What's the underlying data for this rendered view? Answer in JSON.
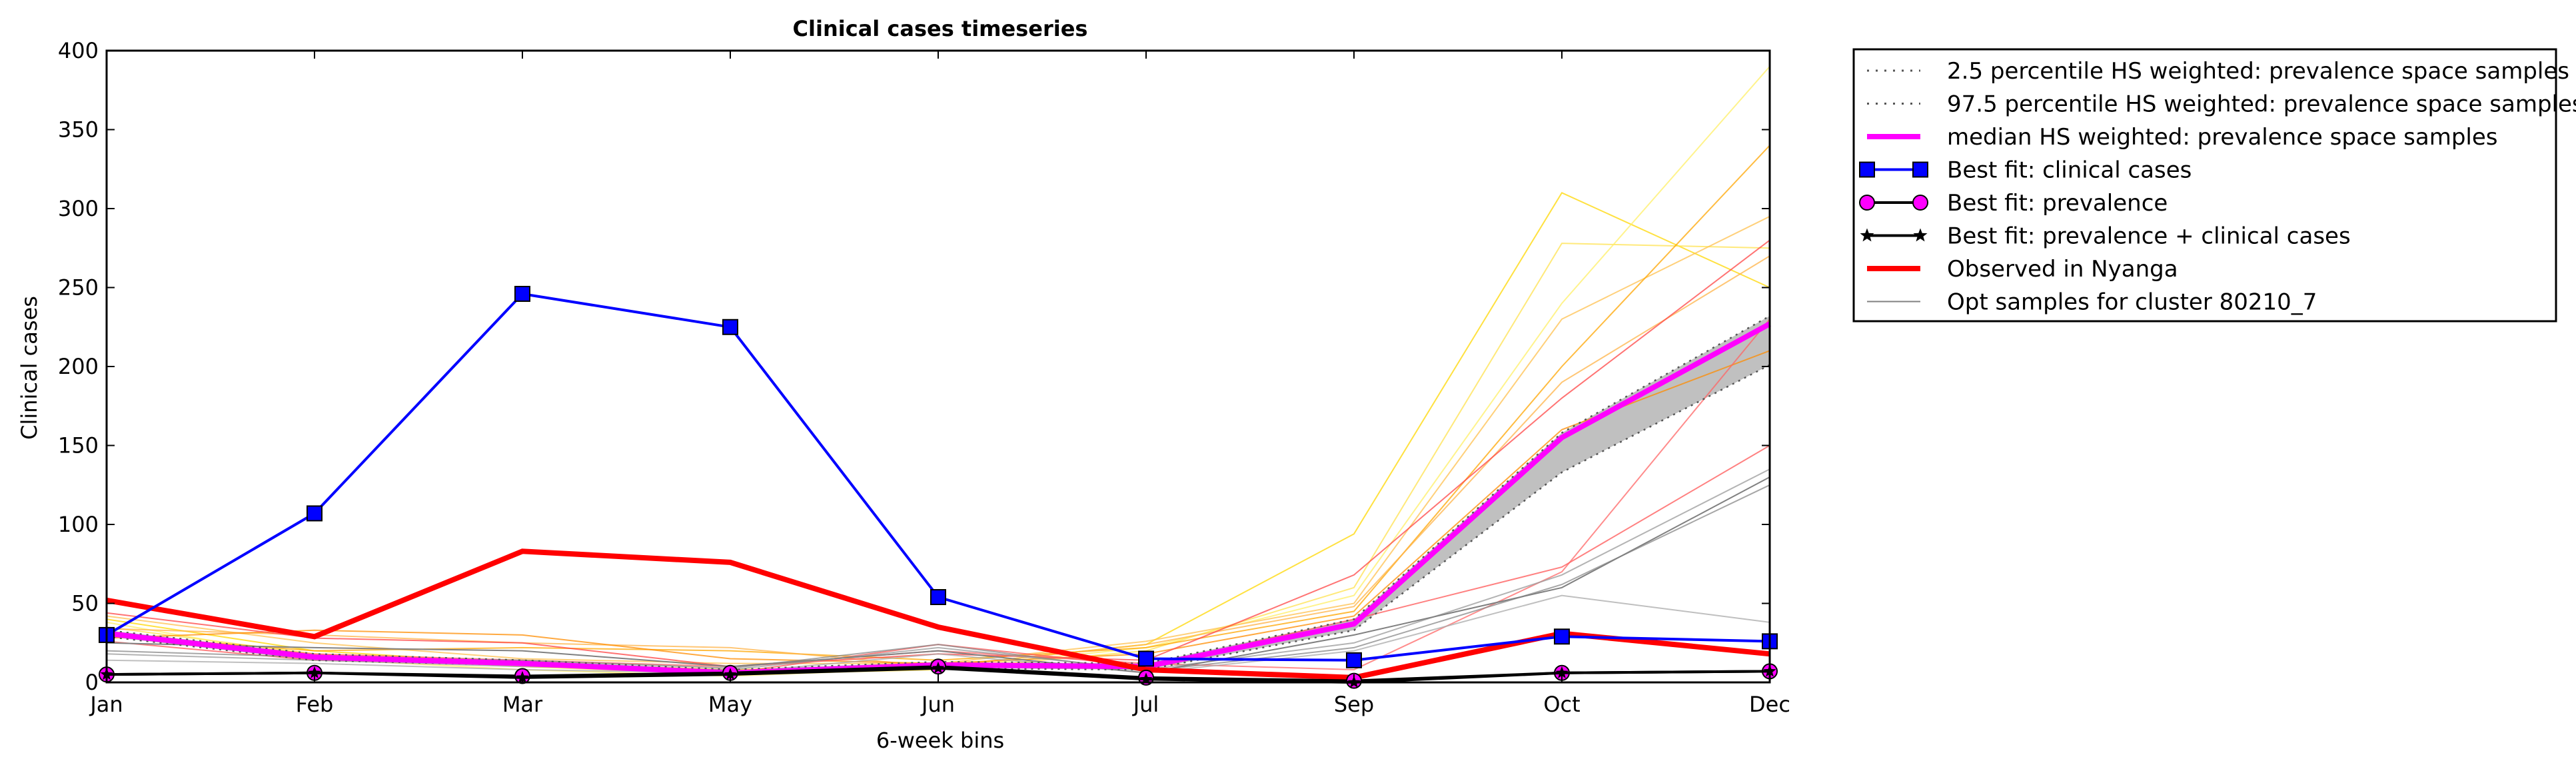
{
  "chart_data": {
    "type": "line",
    "title": "Clinical cases timeseries",
    "xlabel": "6-week bins",
    "ylabel": "Clinical cases",
    "categories": [
      "Jan",
      "Feb",
      "Mar",
      "May",
      "Jun",
      "Jul",
      "Sep",
      "Oct",
      "Dec"
    ],
    "ylim": [
      0,
      400
    ],
    "yticks": [
      0,
      50,
      100,
      150,
      200,
      250,
      300,
      350,
      400
    ],
    "legend_position": "outside-top-right",
    "colors": {
      "percentile": "#555555",
      "band": "#c0c0c0",
      "median": "#ff00ff",
      "best_clinical": "#0000ff",
      "best_prevalence": "#ff00ff",
      "best_combined": "#000000",
      "observed": "#ff0000",
      "opt_samples": "#808080"
    },
    "series": [
      {
        "key": "p2_5",
        "name": "2.5 percentile HS weighted: prevalence space samples",
        "values": [
          29,
          14,
          11,
          5,
          9,
          8,
          33,
          133,
          201
        ]
      },
      {
        "key": "p97_5",
        "name": "97.5 percentile HS weighted: prevalence space samples",
        "values": [
          33,
          18,
          14,
          8,
          13,
          12,
          40,
          158,
          232
        ]
      },
      {
        "key": "median",
        "name": "median HS weighted: prevalence space samples",
        "values": [
          31,
          16,
          12,
          6,
          11,
          10,
          37,
          155,
          227
        ]
      },
      {
        "key": "best_clinical",
        "name": "Best fit: clinical cases",
        "values": [
          30,
          107,
          246,
          225,
          54,
          15,
          14,
          29,
          26
        ]
      },
      {
        "key": "best_prevalence",
        "name": "Best fit: prevalence",
        "values": [
          5,
          6,
          4,
          6,
          10,
          3,
          1,
          6,
          7
        ]
      },
      {
        "key": "best_combined",
        "name": "Best fit: prevalence + clinical cases",
        "values": [
          5,
          6,
          3,
          5,
          9,
          2,
          0,
          6,
          7
        ]
      },
      {
        "key": "observed",
        "name": "Observed in Nyanga",
        "values": [
          52,
          29,
          83,
          76,
          35,
          8,
          3,
          31,
          18
        ]
      },
      {
        "key": "opt_samples",
        "name": "Opt samples for cluster 80210_7",
        "values": [
          25,
          22,
          20,
          10,
          20,
          6,
          30,
          60,
          130
        ]
      }
    ],
    "background_samples": [
      {
        "color": "#ffd700",
        "values": [
          40,
          20,
          12,
          8,
          10,
          24,
          94,
          310,
          250
        ]
      },
      {
        "color": "#ffe14d",
        "values": [
          35,
          18,
          10,
          5,
          8,
          20,
          60,
          278,
          275
        ]
      },
      {
        "color": "#ffef66",
        "values": [
          38,
          15,
          8,
          4,
          9,
          22,
          55,
          240,
          390
        ]
      },
      {
        "color": "#ffc04d",
        "values": [
          42,
          25,
          15,
          12,
          12,
          26,
          50,
          230,
          295
        ]
      },
      {
        "color": "#ffa500",
        "values": [
          30,
          20,
          22,
          20,
          14,
          22,
          45,
          200,
          340
        ]
      },
      {
        "color": "#ffb347",
        "values": [
          34,
          30,
          25,
          22,
          10,
          24,
          48,
          190,
          270
        ]
      },
      {
        "color": "#ff8c00",
        "values": [
          28,
          33,
          30,
          15,
          12,
          18,
          42,
          160,
          210
        ]
      },
      {
        "color": "#ff4444",
        "values": [
          44,
          28,
          25,
          10,
          18,
          14,
          68,
          180,
          280
        ]
      },
      {
        "color": "#ff5555",
        "values": [
          26,
          14,
          12,
          6,
          24,
          10,
          40,
          73,
          150
        ]
      },
      {
        "color": "#ff6666",
        "values": [
          30,
          18,
          14,
          10,
          20,
          12,
          8,
          70,
          230
        ]
      },
      {
        "color": "#999999",
        "values": [
          18,
          14,
          10,
          8,
          22,
          8,
          25,
          68,
          135
        ]
      },
      {
        "color": "#aaaaaa",
        "values": [
          14,
          12,
          8,
          6,
          18,
          6,
          20,
          55,
          38
        ]
      },
      {
        "color": "#888888",
        "values": [
          20,
          16,
          14,
          9,
          24,
          7,
          22,
          62,
          125
        ]
      }
    ]
  }
}
